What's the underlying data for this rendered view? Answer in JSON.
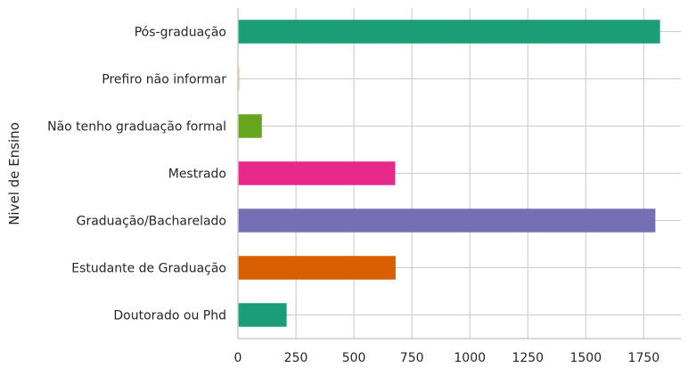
{
  "chart_data": {
    "type": "bar",
    "orientation": "horizontal",
    "title": "",
    "xlabel": "",
    "ylabel": "Nivel de Ensino",
    "categories": [
      "Pós-graduação",
      "Prefiro não informar",
      "Não tenho graduação formal",
      "Mestrado",
      "Graduação/Bacharelado",
      "Estudante de Graduação",
      "Doutorado ou Phd"
    ],
    "values": [
      1820,
      5,
      103,
      678,
      1800,
      680,
      210
    ],
    "colors": [
      "#1b9e77",
      "#e6ab02",
      "#66a61e",
      "#e7298a",
      "#7570b3",
      "#d95f02",
      "#1b9e77"
    ],
    "xlim": [
      0,
      1910
    ],
    "xticks": [
      0,
      250,
      500,
      750,
      1000,
      1250,
      1500,
      1750
    ],
    "xtick_labels": [
      "0",
      "250",
      "500",
      "750",
      "1000",
      "1250",
      "1500",
      "1750"
    ],
    "grid": true,
    "legend": "none"
  }
}
